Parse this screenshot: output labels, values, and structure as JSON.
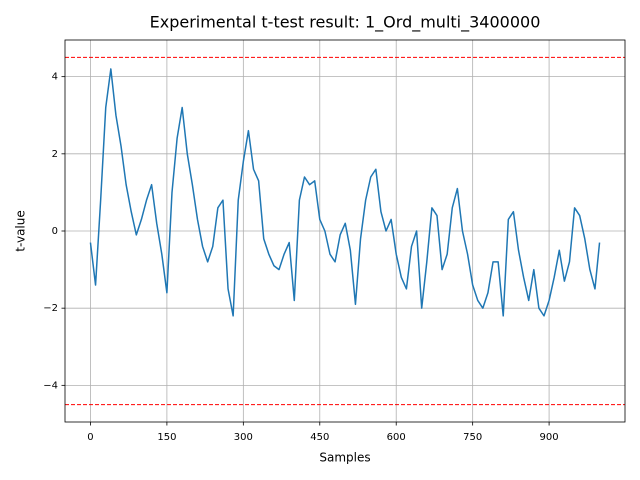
{
  "chart_data": {
    "type": "line",
    "title": "Experimental t-test result: 1_Ord_multi_3400000",
    "xlabel": "Samples",
    "ylabel": "t-value",
    "x": [
      0,
      10,
      20,
      30,
      40,
      50,
      60,
      70,
      80,
      90,
      100,
      110,
      120,
      130,
      140,
      150,
      160,
      170,
      180,
      190,
      200,
      210,
      220,
      230,
      240,
      250,
      260,
      270,
      280,
      290,
      300,
      310,
      320,
      330,
      340,
      350,
      360,
      370,
      380,
      390,
      400,
      410,
      420,
      430,
      440,
      450,
      460,
      470,
      480,
      490,
      500,
      510,
      520,
      530,
      540,
      550,
      560,
      570,
      580,
      590,
      600,
      610,
      620,
      630,
      640,
      650,
      660,
      670,
      680,
      690,
      700,
      710,
      720,
      730,
      740,
      750,
      760,
      770,
      780,
      790,
      800,
      810,
      820,
      830,
      840,
      850,
      860,
      870,
      880,
      890,
      900,
      910,
      920,
      930,
      940,
      950,
      960,
      970,
      980,
      990,
      999
    ],
    "series": [
      {
        "color": "#1f77b4",
        "values": [
          -0.3,
          -1.4,
          0.8,
          3.2,
          4.2,
          3.0,
          2.2,
          1.2,
          0.5,
          -0.1,
          0.3,
          0.8,
          1.2,
          0.2,
          -0.6,
          -1.6,
          1.0,
          2.4,
          3.2,
          2.0,
          1.2,
          0.3,
          -0.4,
          -0.8,
          -0.4,
          0.6,
          0.8,
          -1.5,
          -2.2,
          0.8,
          1.8,
          2.6,
          1.6,
          1.3,
          -0.2,
          -0.6,
          -0.9,
          -1.0,
          -0.6,
          -0.3,
          -1.8,
          0.8,
          1.4,
          1.2,
          1.3,
          0.3,
          0.0,
          -0.6,
          -0.8,
          -0.1,
          0.2,
          -0.5,
          -1.9,
          -0.2,
          0.8,
          1.4,
          1.6,
          0.5,
          0.0,
          0.3,
          -0.6,
          -1.2,
          -1.5,
          -0.4,
          0.0,
          -2.0,
          -0.8,
          0.6,
          0.4,
          -1.0,
          -0.6,
          0.6,
          1.1,
          0.0,
          -0.6,
          -1.4,
          -1.8,
          -2.0,
          -1.6,
          -0.8,
          -0.8,
          -2.2,
          0.3,
          0.5,
          -0.5,
          -1.2,
          -1.8,
          -1.0,
          -2.0,
          -2.2,
          -1.8,
          -1.2,
          -0.5,
          -1.3,
          -0.8,
          0.6,
          0.4,
          -0.2,
          -1.0,
          -1.5,
          -0.3
        ]
      }
    ],
    "hlines": [
      {
        "value": 4.5,
        "color": "#ff0000"
      },
      {
        "value": -4.5,
        "color": "#ff0000"
      }
    ],
    "xlim": [
      -49.95,
      1048.95
    ],
    "ylim": [
      -4.95,
      4.95
    ],
    "xticks": [
      0,
      150,
      300,
      450,
      600,
      750,
      900
    ],
    "yticks": [
      {
        "value": -4,
        "label": "−4"
      },
      {
        "value": -2,
        "label": "−2"
      },
      0,
      2,
      4
    ],
    "grid": true
  }
}
